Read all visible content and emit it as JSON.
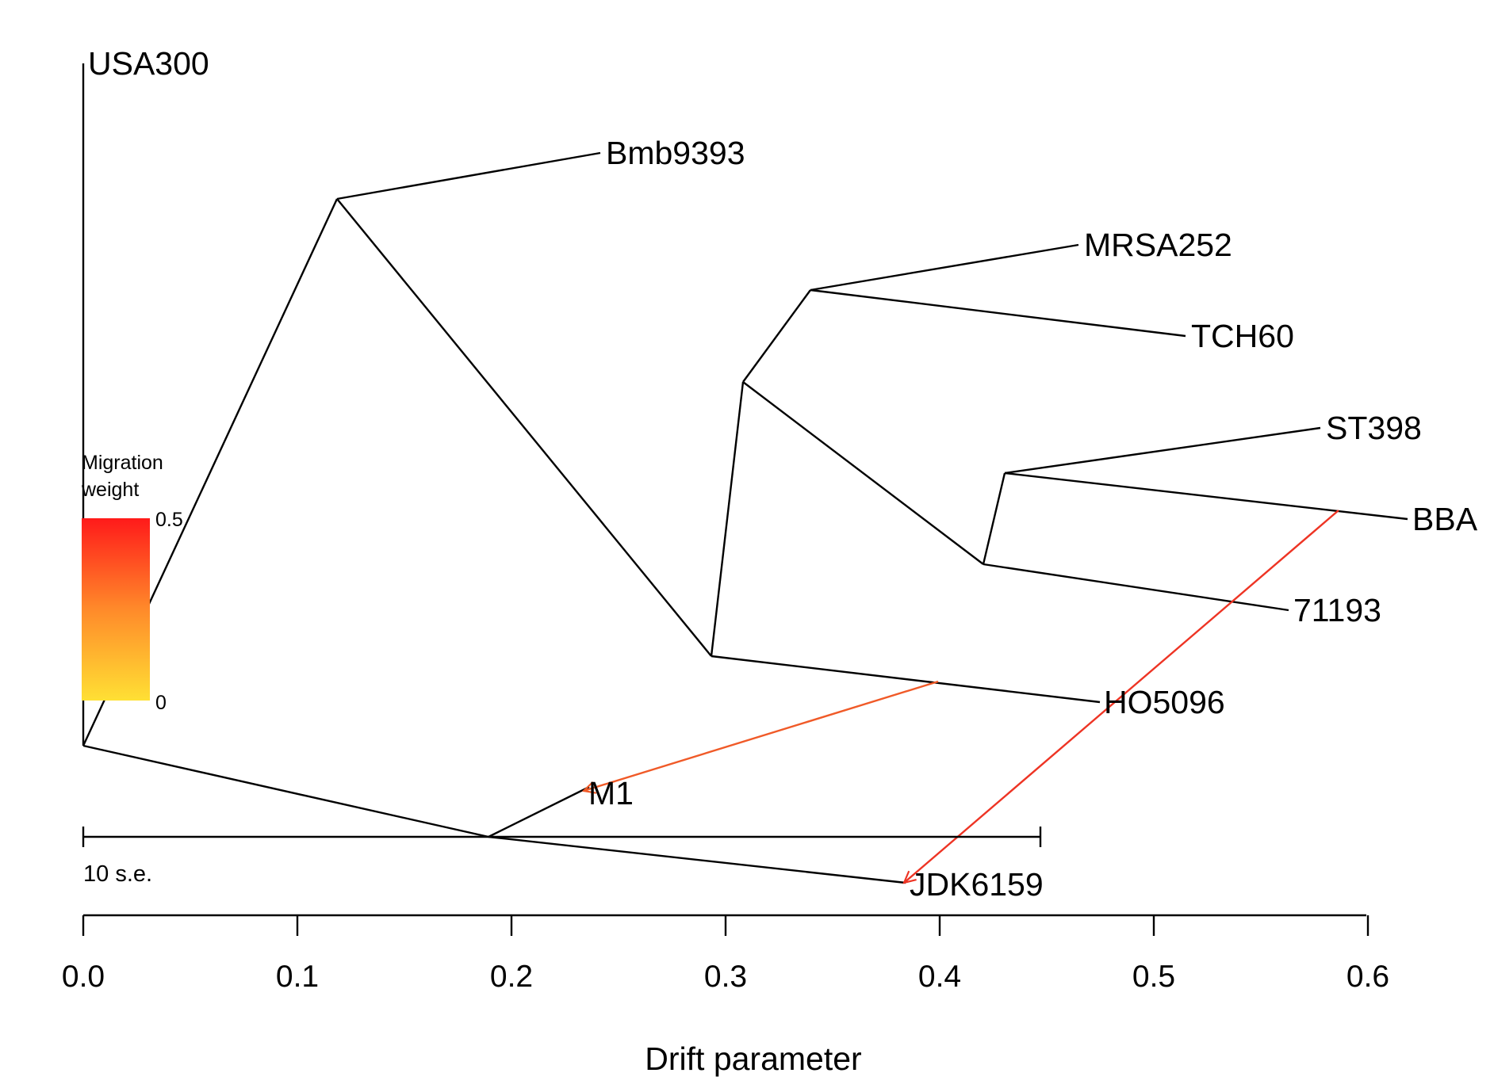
{
  "axis": {
    "label": "Drift parameter",
    "ticks": [
      "0.0",
      "0.1",
      "0.2",
      "0.3",
      "0.4",
      "0.5",
      "0.6"
    ]
  },
  "scale_bar": {
    "label": "10 s.e."
  },
  "legend": {
    "title_line1": "Migration",
    "title_line2": "weight",
    "max_label": "0.5",
    "min_label": "0",
    "color_max": "#ff1a1a",
    "color_mid": "#ff8a2a",
    "color_min": "#ffe034"
  },
  "leaves": {
    "usa300": "USA300",
    "bmb9393": "Bmb9393",
    "mrsa252": "MRSA252",
    "tch60": "TCH60",
    "st398": "ST398",
    "bba": "BBA",
    "s71193": "71193",
    "ho5096": "HO5096",
    "m1": "M1",
    "jdk6159": "JDK6159"
  },
  "migration_edges": [
    {
      "from": "HO5096 branch",
      "to": "M1",
      "color": "#f05a28"
    },
    {
      "from": "BBA branch",
      "to": "JDK6159",
      "color": "#ee3424"
    }
  ]
}
